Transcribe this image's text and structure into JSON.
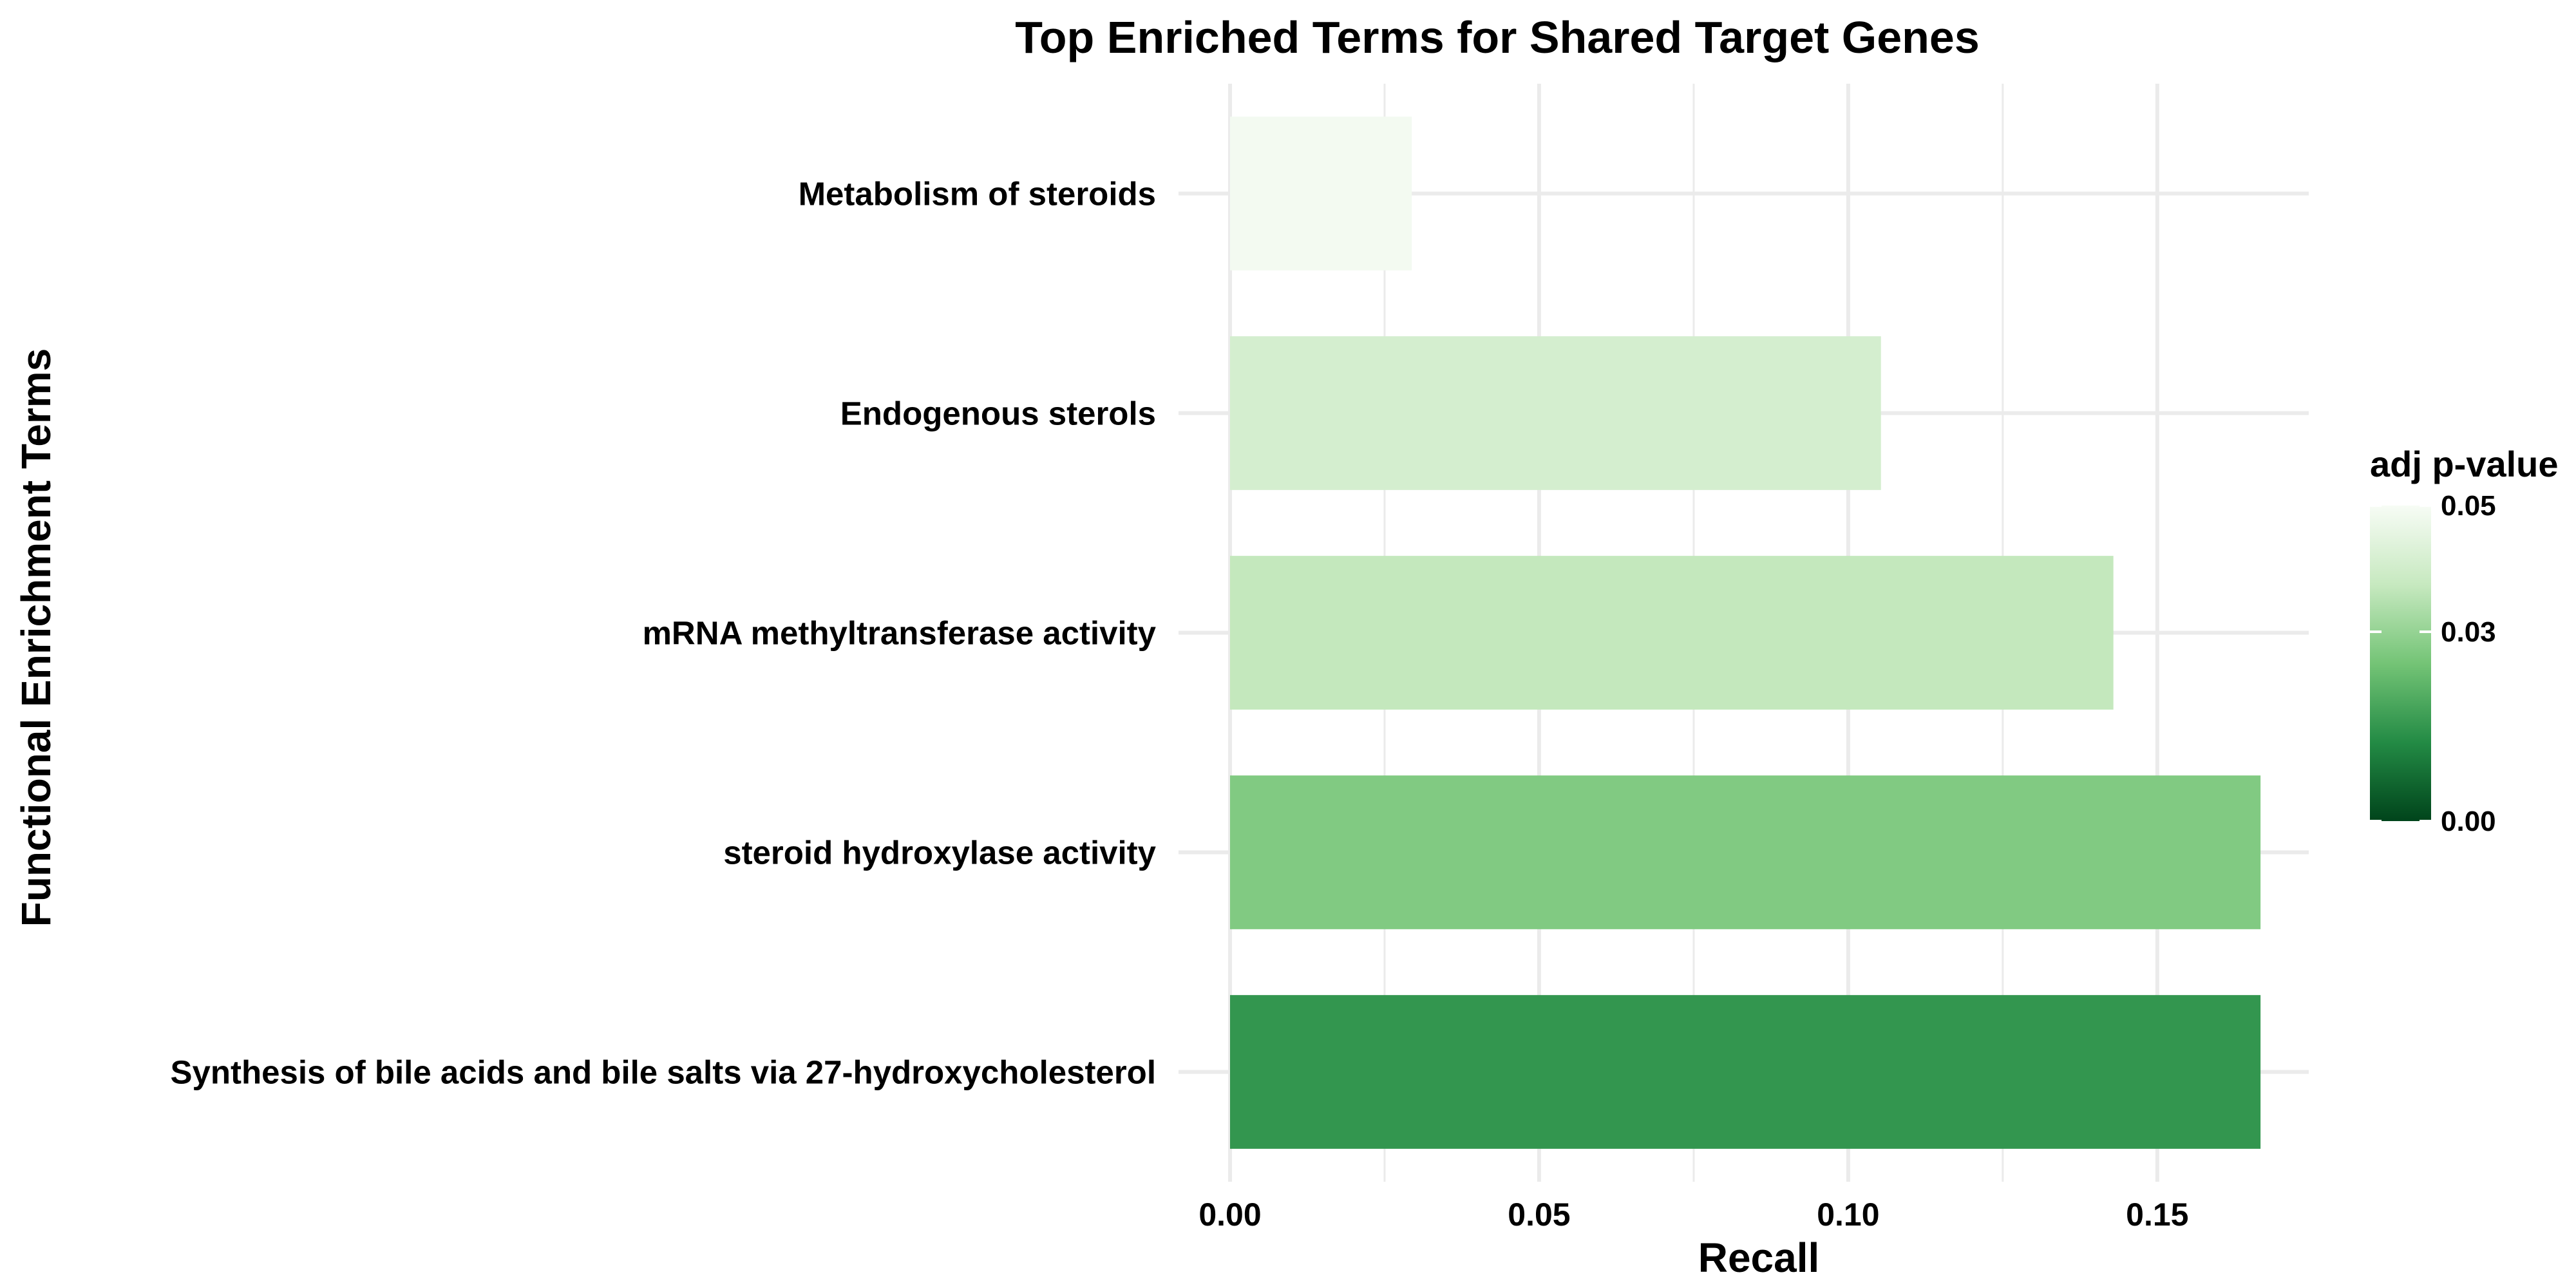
{
  "chart_data": {
    "type": "bar",
    "orientation": "horizontal",
    "title": "Top Enriched Terms for Shared Target Genes",
    "xlabel": "Recall",
    "ylabel": "Functional Enrichment Terms",
    "xlim": [
      0,
      0.1745
    ],
    "x_ticks": [
      0.0,
      0.05,
      0.1,
      0.15
    ],
    "x_tick_labels": [
      "0.00",
      "0.05",
      "0.10",
      "0.15"
    ],
    "grid": true,
    "categories": [
      "Metabolism of steroids",
      "Endogenous sterols",
      "mRNA methyltransferase activity",
      "steroid hydroxylase activity",
      "Synthesis of bile acids and bile salts via 27-hydroxycholesterol"
    ],
    "values": [
      0.0294,
      0.1053,
      0.1429,
      0.1667,
      0.1667
    ],
    "color_values": [
      0.049,
      0.041,
      0.037,
      0.027,
      0.015
    ],
    "legend": {
      "title": "adj p-value",
      "position": "right",
      "ticks": [
        0.05,
        0.03,
        0.0
      ],
      "tick_labels": [
        "0.05",
        "0.03",
        "0.00"
      ],
      "range": [
        0.0,
        0.05
      ],
      "colors": [
        "#00441b",
        "#238b45",
        "#74c476",
        "#c7e9c0",
        "#f7fcf5"
      ]
    }
  }
}
